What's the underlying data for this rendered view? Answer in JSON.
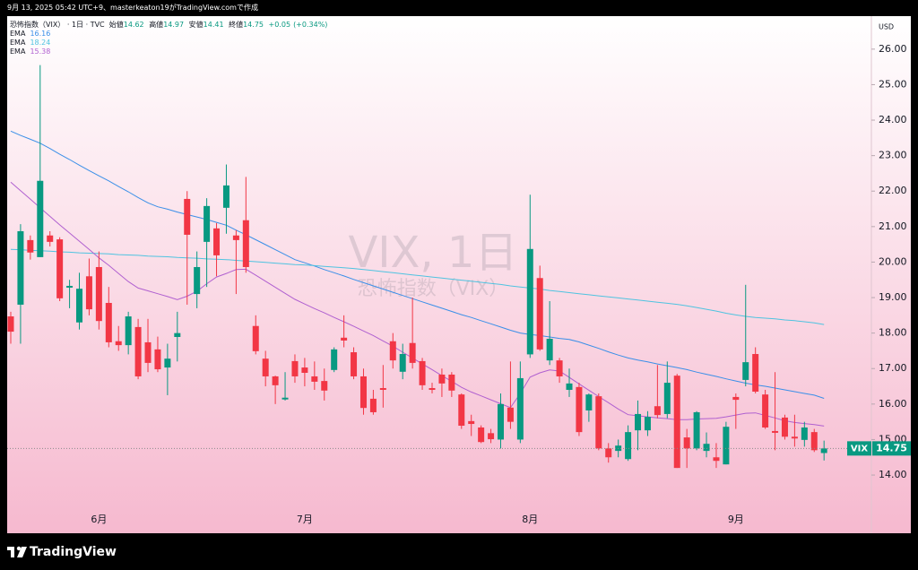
{
  "credit": "9月 13, 2025 05:42 UTC+9、masterkeaton19がTradingView.comで作成",
  "brand": "TradingView",
  "chart_data": {
    "type": "candlestick",
    "symbol_name": "恐怖指数（VIX）",
    "interval": "1日",
    "source": "TVC",
    "ohlc_labels": {
      "open": "始値",
      "high": "高値",
      "low": "安値",
      "close": "終値"
    },
    "change": "+0.05",
    "change_percent": "(+0.34%)",
    "watermark_title": "VIX, 1日",
    "watermark_subtitle": "恐怖指数（VIX）",
    "currency": "USD",
    "price_label": "VIX",
    "up_color": "#089981",
    "down_color": "#f23645",
    "categories": [
      null,
      null,
      null,
      null,
      null,
      null,
      null,
      null,
      null,
      "6月",
      null,
      null,
      null,
      null,
      null,
      null,
      null,
      null,
      null,
      null,
      null,
      null,
      null,
      null,
      null,
      null,
      null,
      null,
      null,
      null,
      "7月",
      null,
      null,
      null,
      null,
      null,
      null,
      null,
      null,
      null,
      null,
      null,
      null,
      null,
      null,
      null,
      null,
      null,
      null,
      null,
      null,
      null,
      null,
      "8月",
      null,
      null,
      null,
      null,
      null,
      null,
      null,
      null,
      null,
      null,
      null,
      null,
      null,
      null,
      null,
      null,
      null,
      null,
      null,
      null,
      "9月",
      null,
      null,
      null,
      null,
      null,
      null,
      null,
      null,
      null
    ],
    "open": [
      18.47,
      18.8,
      20.62,
      20.14,
      20.75,
      20.64,
      19.28,
      18.3,
      19.6,
      19.86,
      18.85,
      17.77,
      17.66,
      18.17,
      17.74,
      17.54,
      17.03,
      17.89,
      21.78,
      19.1,
      20.57,
      20.95,
      21.53,
      20.75,
      21.18,
      18.2,
      17.28,
      16.78,
      16.13,
      17.21,
      17.03,
      16.78,
      16.65,
      16.96,
      17.87,
      17.46,
      16.78,
      16.15,
      16.45,
      17.77,
      16.91,
      17.72,
      17.21,
      16.45,
      16.83,
      16.83,
      16.27,
      15.52,
      15.34,
      15.18,
      15.0,
      15.9,
      15.0,
      17.4,
      19.55,
      17.23,
      17.23,
      16.4,
      16.48,
      15.82,
      16.22,
      14.75,
      14.68,
      14.45,
      15.26,
      15.26,
      15.94,
      15.72,
      16.8,
      15.06,
      14.75,
      14.68,
      14.5,
      14.3,
      16.2,
      16.68,
      17.41,
      16.27,
      15.24,
      15.62,
      15.08,
      14.99,
      15.21,
      14.62
    ],
    "high": [
      18.6,
      21.07,
      20.75,
      25.55,
      20.87,
      20.7,
      19.5,
      19.7,
      20.1,
      20.3,
      19.3,
      18.2,
      18.6,
      18.4,
      18.4,
      17.9,
      17.7,
      18.6,
      22.0,
      20.3,
      21.8,
      21.1,
      22.75,
      20.9,
      22.4,
      18.5,
      17.5,
      16.8,
      16.9,
      17.4,
      17.3,
      17.2,
      17.0,
      17.6,
      18.5,
      17.6,
      17.0,
      16.4,
      17.1,
      18.0,
      17.7,
      19.0,
      17.3,
      16.6,
      17.0,
      16.9,
      16.3,
      15.7,
      15.4,
      15.3,
      16.3,
      17.2,
      17.2,
      21.9,
      19.9,
      18.9,
      17.3,
      17.0,
      16.6,
      16.3,
      16.3,
      14.9,
      15.0,
      15.4,
      16.1,
      15.8,
      17.1,
      17.2,
      16.85,
      15.3,
      15.8,
      15.2,
      14.9,
      15.5,
      16.3,
      19.36,
      17.6,
      16.4,
      16.9,
      15.7,
      15.7,
      15.5,
      15.3,
      14.97
    ],
    "low": [
      17.7,
      17.7,
      20.07,
      20.14,
      20.44,
      18.9,
      18.7,
      18.1,
      18.5,
      18.1,
      17.6,
      17.5,
      17.4,
      16.7,
      16.9,
      16.9,
      16.25,
      17.2,
      18.8,
      18.7,
      19.3,
      19.6,
      20.8,
      19.1,
      19.7,
      17.4,
      16.5,
      16.0,
      16.1,
      16.6,
      16.5,
      16.4,
      16.1,
      16.9,
      17.6,
      16.7,
      15.7,
      15.7,
      15.9,
      17.0,
      16.7,
      17.0,
      16.4,
      16.3,
      16.2,
      16.2,
      15.3,
      15.1,
      14.9,
      14.9,
      14.75,
      15.3,
      14.9,
      17.3,
      17.5,
      17.1,
      16.6,
      16.2,
      15.1,
      15.5,
      14.7,
      14.35,
      14.5,
      14.4,
      14.7,
      15.1,
      15.6,
      15.6,
      14.2,
      14.2,
      14.7,
      14.5,
      14.2,
      14.3,
      15.3,
      16.5,
      16.3,
      15.3,
      14.7,
      15.0,
      14.8,
      14.8,
      14.65,
      14.41
    ],
    "close": [
      18.04,
      20.87,
      20.27,
      22.29,
      20.57,
      18.98,
      19.33,
      19.25,
      18.67,
      18.34,
      17.74,
      17.66,
      18.47,
      16.78,
      17.16,
      16.98,
      17.28,
      18.0,
      20.77,
      19.86,
      21.58,
      20.19,
      22.16,
      20.62,
      19.86,
      17.49,
      16.78,
      16.53,
      16.18,
      16.78,
      16.88,
      16.63,
      16.38,
      17.54,
      17.79,
      16.78,
      15.89,
      15.77,
      16.4,
      17.23,
      17.41,
      17.16,
      16.53,
      16.4,
      16.58,
      16.38,
      15.39,
      15.44,
      14.93,
      15.01,
      16.0,
      15.5,
      16.73,
      20.37,
      17.54,
      17.84,
      16.78,
      16.58,
      15.21,
      16.27,
      14.75,
      14.5,
      14.83,
      15.21,
      15.72,
      15.64,
      15.69,
      16.6,
      14.2,
      14.75,
      15.77,
      14.88,
      14.4,
      15.36,
      16.12,
      17.18,
      16.35,
      15.34,
      15.19,
      15.08,
      15.03,
      15.34,
      14.7,
      14.75
    ],
    "indicators": [
      {
        "name": "EMA",
        "color": "#3a8fe8",
        "values": [
          23.69,
          23.57,
          23.46,
          23.35,
          23.2,
          23.04,
          22.89,
          22.73,
          22.58,
          22.43,
          22.29,
          22.13,
          21.98,
          21.82,
          21.67,
          21.56,
          21.49,
          21.41,
          21.34,
          21.27,
          21.2,
          21.12,
          21.04,
          20.9,
          20.77,
          20.63,
          20.49,
          20.35,
          20.21,
          20.07,
          19.98,
          19.89,
          19.79,
          19.7,
          19.61,
          19.51,
          19.42,
          19.33,
          19.24,
          19.15,
          19.06,
          18.97,
          18.88,
          18.79,
          18.7,
          18.61,
          18.52,
          18.44,
          18.35,
          18.26,
          18.17,
          18.08,
          18.0,
          17.96,
          17.93,
          17.89,
          17.85,
          17.82,
          17.75,
          17.66,
          17.57,
          17.47,
          17.38,
          17.3,
          17.24,
          17.19,
          17.13,
          17.08,
          17.03,
          16.97,
          16.9,
          16.84,
          16.78,
          16.71,
          16.65,
          16.59,
          16.54,
          16.5,
          16.45,
          16.4,
          16.35,
          16.3,
          16.25,
          16.16
        ]
      },
      {
        "name": "EMA",
        "color": "#4fc3e0",
        "values": [
          20.36,
          20.35,
          20.33,
          20.32,
          20.31,
          20.29,
          20.28,
          20.26,
          20.25,
          20.24,
          20.23,
          20.21,
          20.2,
          20.19,
          20.17,
          20.16,
          20.15,
          20.13,
          20.12,
          20.11,
          20.09,
          20.08,
          20.07,
          20.05,
          20.03,
          20.01,
          19.99,
          19.97,
          19.95,
          19.93,
          19.92,
          19.9,
          19.88,
          19.86,
          19.84,
          19.82,
          19.79,
          19.76,
          19.73,
          19.7,
          19.67,
          19.64,
          19.61,
          19.58,
          19.55,
          19.52,
          19.49,
          19.46,
          19.43,
          19.4,
          19.37,
          19.33,
          19.3,
          19.27,
          19.24,
          19.2,
          19.17,
          19.14,
          19.11,
          19.08,
          19.05,
          19.02,
          18.99,
          18.96,
          18.93,
          18.9,
          18.87,
          18.84,
          18.81,
          18.77,
          18.72,
          18.67,
          18.62,
          18.56,
          18.51,
          18.47,
          18.44,
          18.42,
          18.4,
          18.37,
          18.35,
          18.32,
          18.29,
          18.24
        ]
      },
      {
        "name": "EMA",
        "color": "#b060d0",
        "values": [
          22.25,
          22.01,
          21.77,
          21.53,
          21.29,
          21.05,
          20.82,
          20.59,
          20.36,
          20.12,
          19.91,
          19.68,
          19.45,
          19.27,
          19.19,
          19.11,
          19.03,
          18.94,
          19.04,
          19.18,
          19.39,
          19.58,
          19.68,
          19.79,
          19.8,
          19.63,
          19.46,
          19.29,
          19.12,
          18.95,
          18.82,
          18.69,
          18.57,
          18.44,
          18.32,
          18.19,
          18.06,
          17.93,
          17.78,
          17.63,
          17.46,
          17.3,
          17.13,
          16.97,
          16.8,
          16.64,
          16.47,
          16.34,
          16.23,
          16.12,
          16.01,
          15.9,
          16.3,
          16.76,
          16.88,
          16.96,
          16.93,
          16.75,
          16.57,
          16.39,
          16.21,
          16.04,
          15.86,
          15.7,
          15.67,
          15.64,
          15.61,
          15.59,
          15.56,
          15.56,
          15.58,
          15.59,
          15.6,
          15.64,
          15.69,
          15.74,
          15.75,
          15.68,
          15.61,
          15.53,
          15.48,
          15.45,
          15.42,
          15.38
        ]
      }
    ],
    "ylim": [
      12.36,
      26.93
    ],
    "yticks": [
      {
        "value": 14,
        "label": "14.00"
      },
      {
        "value": 15,
        "label": "15.00"
      },
      {
        "value": 16,
        "label": "16.00"
      },
      {
        "value": 17,
        "label": "17.00"
      },
      {
        "value": 18,
        "label": "18.00"
      },
      {
        "value": 19,
        "label": "19.00"
      },
      {
        "value": 20,
        "label": "20.00"
      },
      {
        "value": 21,
        "label": "21.00"
      },
      {
        "value": 22,
        "label": "22.00"
      },
      {
        "value": 23,
        "label": "23.00"
      },
      {
        "value": 24,
        "label": "24.00"
      },
      {
        "value": 25,
        "label": "25.00"
      },
      {
        "value": 26,
        "label": "26.00"
      }
    ]
  }
}
